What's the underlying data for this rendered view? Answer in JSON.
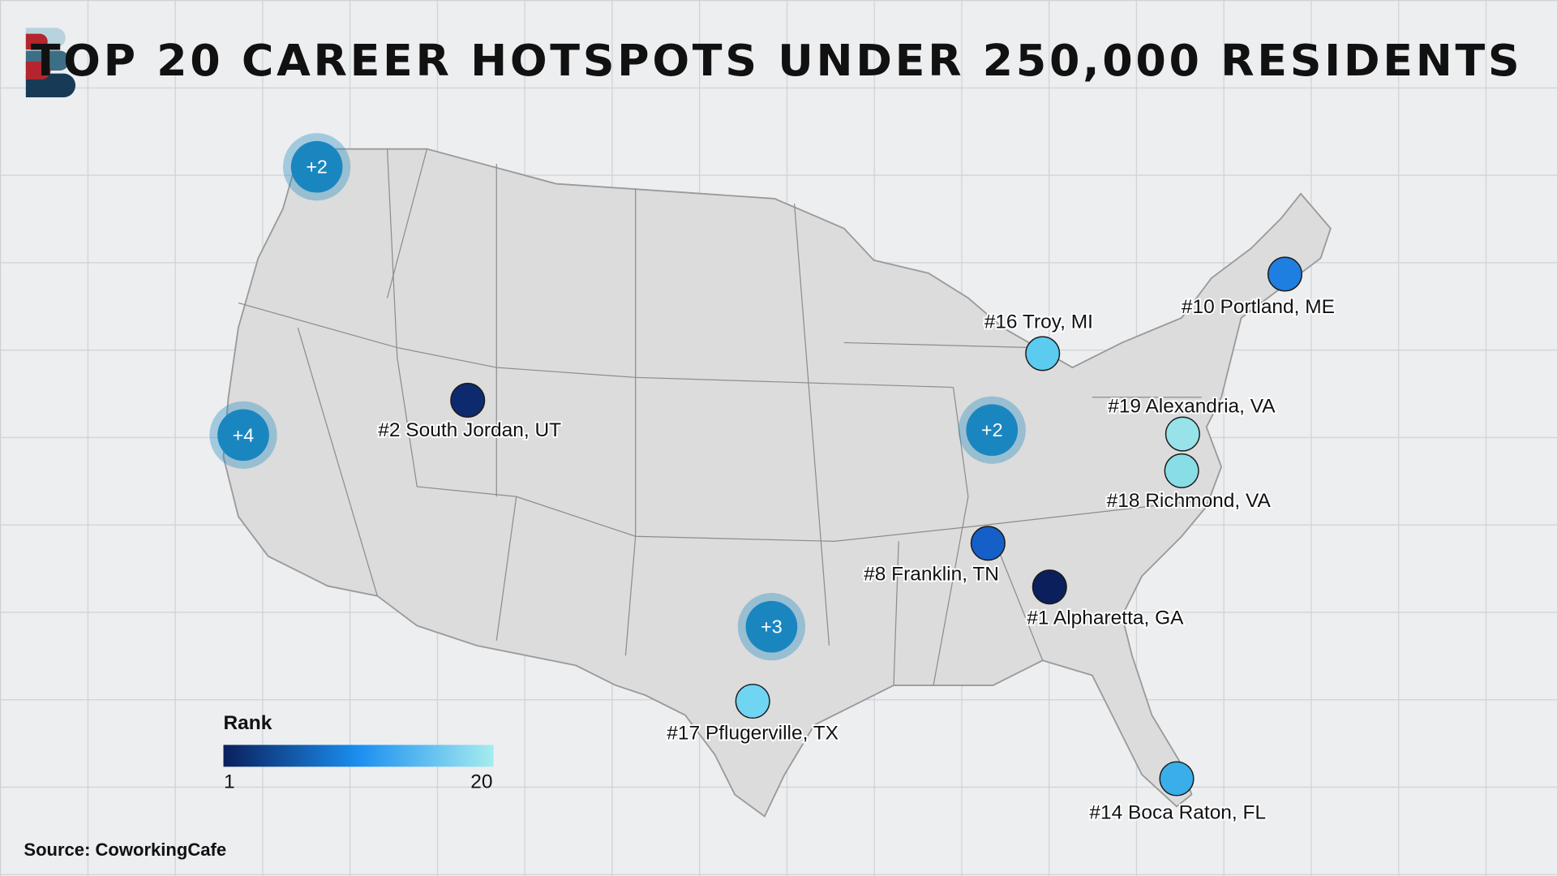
{
  "title": "TOP 20 CAREER HOTSPOTS UNDER 250,000 RESIDENTS",
  "source": "Source: CoworkingCafe",
  "legend": {
    "title": "Rank",
    "min": 1,
    "max": 20,
    "colors": [
      "#0b1f5c",
      "#1a8ff0",
      "#a6ecef"
    ]
  },
  "cluster_color": "#1a86c0",
  "clusters": [
    "+2",
    "+4",
    "+2",
    "+3"
  ],
  "cities": [
    {
      "label": "#1 Alpharetta, GA",
      "color": "#0b1f5c"
    },
    {
      "label": "#2 South Jordan, UT",
      "color": "#0d2a6e"
    },
    {
      "label": "#8 Franklin, TN",
      "color": "#1560c8"
    },
    {
      "label": "#10 Portland, ME",
      "color": "#1e7fe0"
    },
    {
      "label": "#14 Boca Raton, FL",
      "color": "#3aaee8"
    },
    {
      "label": "#16 Troy, MI",
      "color": "#5ccbf0"
    },
    {
      "label": "#17 Pflugerville, TX",
      "color": "#6fd5f3"
    },
    {
      "label": "#18 Richmond, VA",
      "color": "#88dde6"
    },
    {
      "label": "#19 Alexandria, VA",
      "color": "#98e3ea"
    }
  ]
}
